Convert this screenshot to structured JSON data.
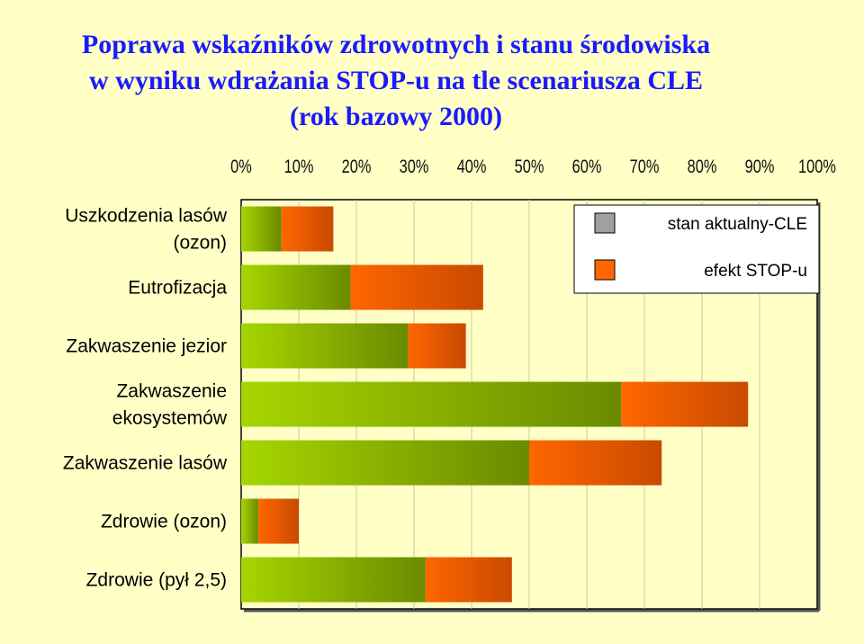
{
  "chart_data": {
    "type": "bar",
    "orientation": "horizontal",
    "stacked": true,
    "title": [
      "Poprawa wskaźników zdrowotnych i stanu środowiska",
      "w wyniku wdrażania STOP-u na tle scenariusza CLE",
      "(rok bazowy 2000)"
    ],
    "x_ticks": [
      "0%",
      "10%",
      "20%",
      "30%",
      "40%",
      "50%",
      "60%",
      "70%",
      "80%",
      "90%",
      "100%"
    ],
    "xlim": [
      0,
      100
    ],
    "axis_position": "top",
    "grid": true,
    "legend_position": "top-right",
    "categories": [
      [
        "Uszkodzenia lasów",
        "(ozon)"
      ],
      [
        "Eutrofizacja"
      ],
      [
        "Zakwaszenie jezior"
      ],
      [
        "Zakwaszenie",
        "ekosystemów"
      ],
      [
        "Zakwaszenie lasów"
      ],
      [
        "Zdrowie (ozon)"
      ],
      [
        "Zdrowie (pył 2,5)"
      ]
    ],
    "series": [
      {
        "name": "stan aktualny-CLE",
        "color": "#90c000",
        "values": [
          7,
          19,
          29,
          66,
          50,
          3,
          32
        ]
      },
      {
        "name": "efekt STOP-u",
        "color": "#f06000",
        "values": [
          9,
          23,
          10,
          22,
          23,
          7,
          15
        ]
      }
    ]
  }
}
